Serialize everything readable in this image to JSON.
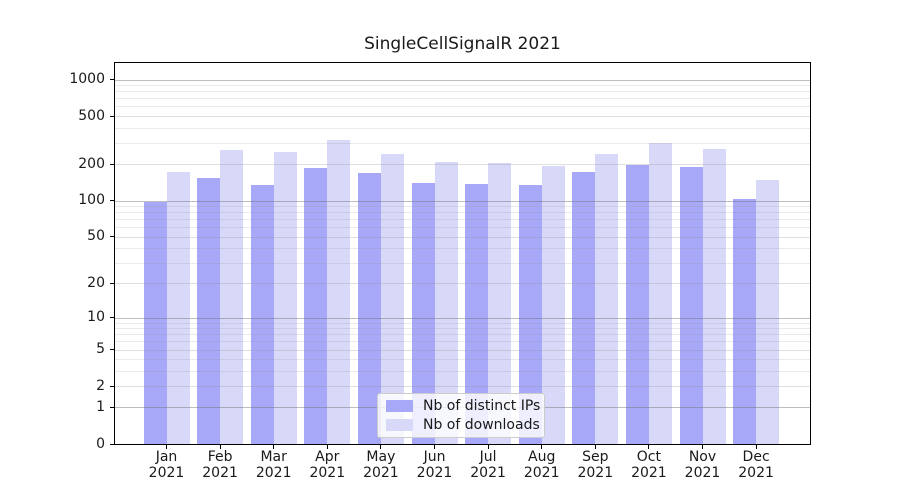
{
  "title": "SingleCellSignalR 2021",
  "colors": {
    "ips_bar": "#a8a8f8",
    "downloads_bar": "#d8d8f8",
    "axis": "#000000",
    "grid_major": "#c2c2c2",
    "grid_minor": "#e8e8e8",
    "legend_border": "#cccccc",
    "text": "#1a1a1a",
    "background": "#ffffff"
  },
  "legend": {
    "position": "lower center",
    "items": [
      {
        "label": "Nb of distinct IPs",
        "color_key": "ips_bar"
      },
      {
        "label": "Nb of downloads",
        "color_key": "downloads_bar"
      }
    ]
  },
  "chart_data": {
    "type": "bar",
    "title": "SingleCellSignalR 2021",
    "xlabel": "",
    "ylabel": "",
    "categories": [
      "Jan 2021",
      "Feb 2021",
      "Mar 2021",
      "Apr 2021",
      "May 2021",
      "Jun 2021",
      "Jul 2021",
      "Aug 2021",
      "Sep 2021",
      "Oct 2021",
      "Nov 2021",
      "Dec 2021"
    ],
    "series": [
      {
        "name": "Nb of distinct IPs",
        "values": [
          97,
          153,
          135,
          186,
          168,
          141,
          138,
          135,
          172,
          196,
          189,
          103
        ]
      },
      {
        "name": "Nb of downloads",
        "values": [
          172,
          264,
          252,
          315,
          242,
          209,
          205,
          193,
          245,
          300,
          266,
          148
        ]
      }
    ],
    "yscale": "log1p",
    "yticks": [
      0,
      1,
      2,
      5,
      10,
      20,
      50,
      100,
      200,
      500,
      1000
    ],
    "minor_yticks": [
      3,
      4,
      6,
      7,
      8,
      9,
      30,
      40,
      60,
      70,
      80,
      90,
      300,
      400,
      600,
      700,
      800,
      900
    ],
    "ylim": [
      0,
      1368
    ],
    "grid": true,
    "legend_position": "lower center"
  }
}
